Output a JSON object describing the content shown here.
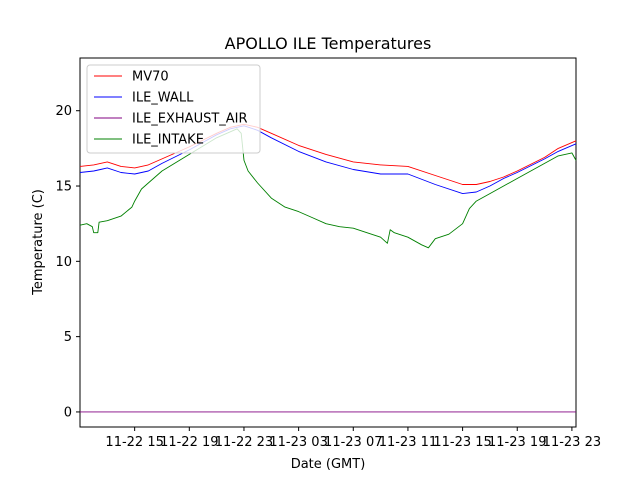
{
  "chart_data": {
    "type": "line",
    "title": "APOLLO ILE Temperatures",
    "xlabel": "Date (GMT)",
    "ylabel": "Temperature (C)",
    "x_unit": "hours since 2022-11-22 11:00 GMT",
    "xlim": [
      0,
      36.3
    ],
    "ylim": [
      -1,
      23.5
    ],
    "grid": false,
    "legend_position": "top-left",
    "x_ticks": [
      {
        "x": 4,
        "label": "11-22 15"
      },
      {
        "x": 8,
        "label": "11-22 19"
      },
      {
        "x": 12,
        "label": "11-22 23"
      },
      {
        "x": 16,
        "label": "11-23 03"
      },
      {
        "x": 20,
        "label": "11-23 07"
      },
      {
        "x": 24,
        "label": "11-23 11"
      },
      {
        "x": 28,
        "label": "11-23 15"
      },
      {
        "x": 32,
        "label": "11-23 19"
      },
      {
        "x": 36,
        "label": "11-23 23"
      }
    ],
    "y_ticks": [
      {
        "y": 0,
        "label": "0"
      },
      {
        "y": 5,
        "label": "5"
      },
      {
        "y": 10,
        "label": "10"
      },
      {
        "y": 15,
        "label": "15"
      },
      {
        "y": 20,
        "label": "20"
      }
    ],
    "series": [
      {
        "name": "MV70",
        "color": "#ff0000",
        "points": [
          [
            0,
            16.3
          ],
          [
            1,
            16.4
          ],
          [
            1.5,
            16.5
          ],
          [
            2,
            16.6
          ],
          [
            3,
            16.3
          ],
          [
            4,
            16.2
          ],
          [
            5,
            16.4
          ],
          [
            6,
            16.8
          ],
          [
            8,
            17.6
          ],
          [
            10,
            18.5
          ],
          [
            11,
            18.9
          ],
          [
            12,
            19.1
          ],
          [
            13,
            18.9
          ],
          [
            14,
            18.5
          ],
          [
            16,
            17.7
          ],
          [
            18,
            17.1
          ],
          [
            20,
            16.6
          ],
          [
            22,
            16.4
          ],
          [
            24,
            16.3
          ],
          [
            26,
            15.7
          ],
          [
            28,
            15.1
          ],
          [
            29,
            15.1
          ],
          [
            30,
            15.3
          ],
          [
            31,
            15.6
          ],
          [
            32,
            16.0
          ],
          [
            34,
            16.9
          ],
          [
            35,
            17.5
          ],
          [
            36.3,
            18.0
          ]
        ]
      },
      {
        "name": "ILE_WALL",
        "color": "#0000ff",
        "points": [
          [
            0,
            15.9
          ],
          [
            1,
            16.0
          ],
          [
            1.5,
            16.1
          ],
          [
            2,
            16.2
          ],
          [
            3,
            15.9
          ],
          [
            4,
            15.8
          ],
          [
            5,
            16.0
          ],
          [
            6,
            16.5
          ],
          [
            8,
            17.4
          ],
          [
            10,
            18.4
          ],
          [
            11,
            18.8
          ],
          [
            12,
            19.0
          ],
          [
            13,
            18.7
          ],
          [
            14,
            18.2
          ],
          [
            16,
            17.3
          ],
          [
            18,
            16.6
          ],
          [
            20,
            16.1
          ],
          [
            22,
            15.8
          ],
          [
            24,
            15.8
          ],
          [
            26,
            15.1
          ],
          [
            28,
            14.5
          ],
          [
            29,
            14.6
          ],
          [
            30,
            15.0
          ],
          [
            31,
            15.5
          ],
          [
            32,
            15.9
          ],
          [
            34,
            16.8
          ],
          [
            35,
            17.3
          ],
          [
            36.3,
            17.8
          ]
        ]
      },
      {
        "name": "ILE_EXHAUST_AIR",
        "color": "#800080",
        "points": [
          [
            0,
            0.0
          ],
          [
            36.3,
            0.0
          ]
        ]
      },
      {
        "name": "ILE_INTAKE",
        "color": "#008000",
        "points": [
          [
            0,
            12.4
          ],
          [
            0.5,
            12.5
          ],
          [
            0.9,
            12.3
          ],
          [
            1.0,
            11.9
          ],
          [
            1.3,
            11.9
          ],
          [
            1.4,
            12.6
          ],
          [
            2,
            12.7
          ],
          [
            3,
            13.0
          ],
          [
            3.8,
            13.6
          ],
          [
            4,
            14.0
          ],
          [
            4.5,
            14.8
          ],
          [
            5,
            15.2
          ],
          [
            6,
            16.0
          ],
          [
            8,
            17.1
          ],
          [
            10,
            18.2
          ],
          [
            11,
            18.6
          ],
          [
            11.5,
            18.8
          ],
          [
            11.8,
            18.5
          ],
          [
            12,
            16.7
          ],
          [
            12.3,
            16.0
          ],
          [
            13,
            15.2
          ],
          [
            14,
            14.2
          ],
          [
            15,
            13.6
          ],
          [
            16,
            13.3
          ],
          [
            17,
            12.9
          ],
          [
            18,
            12.5
          ],
          [
            19,
            12.3
          ],
          [
            20,
            12.2
          ],
          [
            21,
            11.9
          ],
          [
            22,
            11.6
          ],
          [
            22.5,
            11.2
          ],
          [
            22.7,
            12.1
          ],
          [
            23,
            11.9
          ],
          [
            24,
            11.6
          ],
          [
            25,
            11.1
          ],
          [
            25.5,
            10.9
          ],
          [
            26,
            11.5
          ],
          [
            27,
            11.8
          ],
          [
            28,
            12.5
          ],
          [
            28.5,
            13.5
          ],
          [
            29,
            14.0
          ],
          [
            30,
            14.5
          ],
          [
            32,
            15.5
          ],
          [
            34,
            16.5
          ],
          [
            35,
            17.0
          ],
          [
            36,
            17.2
          ],
          [
            36.3,
            16.7
          ]
        ]
      }
    ]
  }
}
